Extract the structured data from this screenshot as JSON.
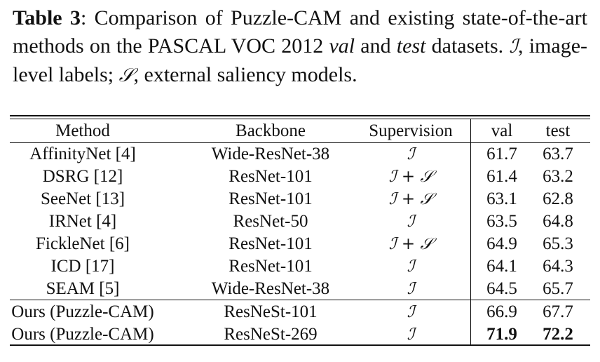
{
  "caption": {
    "label": "Table 3",
    "pre": ": Comparison of Puzzle-CAM and existing state-of-the-art methods on the PASCAL VOC 2012 ",
    "val": "val",
    "and": " and ",
    "test": "test",
    "mid": " datasets. ",
    "i_symbol": "ℐ",
    "i_text": ", image-level labels; ",
    "s_symbol": "𝒮",
    "s_text": ", external saliency models."
  },
  "table": {
    "headers": {
      "method": "Method",
      "backbone": "Backbone",
      "supervision": "Supervision",
      "val": "val",
      "test": "test"
    },
    "rows": [
      {
        "method": "AffinityNet [4]",
        "backbone": "Wide-ResNet-38",
        "supervision": "ℐ",
        "val": "61.7",
        "test": "63.7"
      },
      {
        "method": "DSRG [12]",
        "backbone": "ResNet-101",
        "supervision": "ℐ + 𝒮",
        "val": "61.4",
        "test": "63.2"
      },
      {
        "method": "SeeNet [13]",
        "backbone": "ResNet-101",
        "supervision": "ℐ + 𝒮",
        "val": "63.1",
        "test": "62.8"
      },
      {
        "method": "IRNet [4]",
        "backbone": "ResNet-50",
        "supervision": "ℐ",
        "val": "63.5",
        "test": "64.8"
      },
      {
        "method": "FickleNet [6]",
        "backbone": "ResNet-101",
        "supervision": "ℐ + 𝒮",
        "val": "64.9",
        "test": "65.3"
      },
      {
        "method": "ICD [17]",
        "backbone": "ResNet-101",
        "supervision": "ℐ",
        "val": "64.1",
        "test": "64.3"
      },
      {
        "method": "SEAM [5]",
        "backbone": "Wide-ResNet-38",
        "supervision": "ℐ",
        "val": "64.5",
        "test": "65.7"
      }
    ],
    "ours_rows": [
      {
        "method": "Ours (Puzzle-CAM)",
        "backbone": "ResNeSt-101",
        "supervision": "ℐ",
        "val": "66.9",
        "test": "67.7"
      },
      {
        "method": "Ours (Puzzle-CAM)",
        "backbone": "ResNeSt-269",
        "supervision": "ℐ",
        "val": "71.9",
        "test": "72.2"
      }
    ]
  }
}
